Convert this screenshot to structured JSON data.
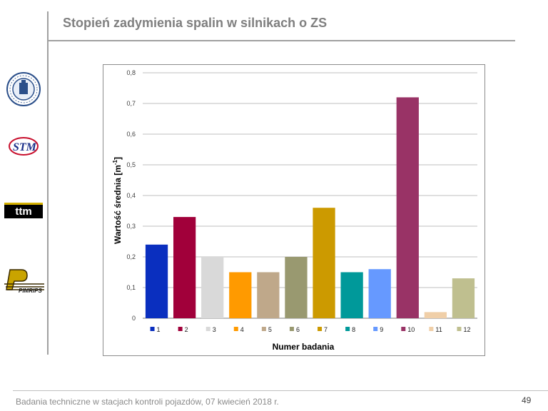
{
  "slide": {
    "title": "Stopień zadymienia spalin w silnikach o ZS",
    "footer": "Badania techniczne w stacjach kontroli pojazdów, 07 kwiecień 2018 r.",
    "page_number": "49"
  },
  "logos": {
    "ttm": "ttm",
    "stm": "STM",
    "pimrips": "PIMRIPS"
  },
  "chart_data": {
    "type": "bar",
    "categories": [
      "1",
      "2",
      "3",
      "4",
      "5",
      "6",
      "7",
      "8",
      "9",
      "10",
      "11",
      "12"
    ],
    "values": [
      0.24,
      0.33,
      0.2,
      0.15,
      0.15,
      0.2,
      0.36,
      0.15,
      0.16,
      0.72,
      0.02,
      0.13
    ],
    "colors": [
      "#0a2fbf",
      "#a1003a",
      "#d9d9d9",
      "#ff9a00",
      "#bfa88a",
      "#999970",
      "#cc9a00",
      "#00999a",
      "#6699ff",
      "#993366",
      "#f0cfa8",
      "#bfbf8f"
    ],
    "ylabel_main": "Wartość średnia [m",
    "ylabel_sup": "-1",
    "ylabel_end": "]",
    "xlabel": "Numer badania",
    "ylim": [
      0,
      0.8
    ],
    "yticks": [
      "0",
      "0,1",
      "0,2",
      "0,3",
      "0,4",
      "0,5",
      "0,6",
      "0,7",
      "0,8"
    ],
    "grid": true,
    "legend_position": "bottom"
  }
}
